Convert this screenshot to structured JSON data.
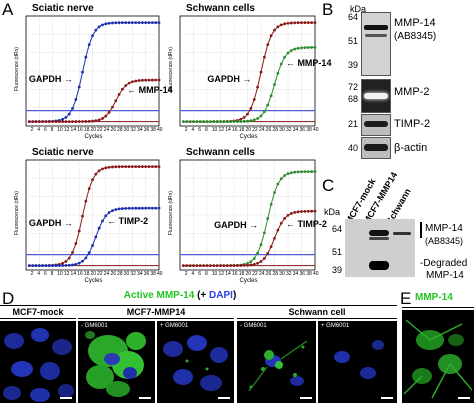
{
  "panels": {
    "a": "A",
    "b": "B",
    "c": "C",
    "d": "D",
    "e": "E"
  },
  "panel_a": {
    "axis_x_label": "Cycles",
    "axis_y_label": "Fluorescence (dRn)",
    "x_ticks": [
      "2",
      "4",
      "6",
      "8",
      "10",
      "12",
      "14",
      "16",
      "18",
      "20",
      "22",
      "24",
      "26",
      "28",
      "30",
      "32",
      "34",
      "36",
      "38",
      "40"
    ],
    "plots": [
      {
        "title": "Sciatic nerve",
        "arrow1": "GAPDH",
        "arrow2": "MMP-14"
      },
      {
        "title": "Schwann cells",
        "arrow1": "GAPDH",
        "arrow2": "MMP-14"
      },
      {
        "title": "Sciatic nerve",
        "arrow1": "GAPDH",
        "arrow2": "TIMP-2"
      },
      {
        "title": "Schwann cells",
        "arrow1": "GAPDH",
        "arrow2": "TIMP-2"
      }
    ]
  },
  "chart_data": [
    {
      "type": "line",
      "title": "Sciatic nerve",
      "xlabel": "Cycles",
      "ylabel": "Fluorescence (dRn)",
      "series": [
        {
          "name": "GAPDH",
          "ct": 17,
          "plateau": 1.0,
          "color": "#1b2fae"
        },
        {
          "name": "MMP-14",
          "ct": 27,
          "plateau": 0.42,
          "color": "#8b1a1a"
        }
      ]
    },
    {
      "type": "line",
      "title": "Schwann cells",
      "xlabel": "Cycles",
      "ylabel": "Fluorescence (dRn)",
      "series": [
        {
          "name": "GAPDH",
          "ct": 24,
          "plateau": 1.0,
          "color": "#8b1a1a"
        },
        {
          "name": "MMP-14",
          "ct": 28,
          "plateau": 0.75,
          "color": "#2e8b2e"
        }
      ]
    },
    {
      "type": "line",
      "title": "Sciatic nerve",
      "xlabel": "Cycles",
      "ylabel": "Fluorescence (dRn)",
      "series": [
        {
          "name": "GAPDH",
          "ct": 17,
          "plateau": 1.0,
          "color": "#8b1a1a"
        },
        {
          "name": "TIMP-2",
          "ct": 21,
          "plateau": 0.58,
          "color": "#1b2fae"
        }
      ]
    },
    {
      "type": "line",
      "title": "Schwann cells",
      "xlabel": "Cycles",
      "ylabel": "Fluorescence (dRn)",
      "series": [
        {
          "name": "GAPDH",
          "ct": 26,
          "plateau": 0.95,
          "color": "#2e8b2e"
        },
        {
          "name": "TIMP-2",
          "ct": 28,
          "plateau": 0.55,
          "color": "#8b1a1a"
        }
      ]
    }
  ],
  "panel_b": {
    "kda": "kDa",
    "blots": [
      {
        "label": "MMP-14",
        "sublabel": "(AB8345)",
        "mw": [
          "64",
          "51",
          "39"
        ]
      },
      {
        "label": "MMP-2",
        "sublabel": "",
        "mw": [
          "72",
          "68"
        ]
      },
      {
        "label": "TIMP-2",
        "sublabel": "",
        "mw": [
          "21"
        ]
      },
      {
        "label": "β-actin",
        "sublabel": "",
        "mw": [
          "40"
        ]
      }
    ]
  },
  "panel_c": {
    "kda": "kDa",
    "lanes": [
      "MCF7-mock",
      "MCF7-MMP14",
      "Schwann"
    ],
    "mw": [
      "64",
      "51",
      "39"
    ],
    "label_main": "MMP-14",
    "label_sub": "(AB8345)",
    "label_degraded": "-Degraded",
    "label_degraded2": "MMP-14"
  },
  "panel_d": {
    "title_green": "Active MMP-14",
    "title_mid": " (+ ",
    "title_blue": "DAPI",
    "title_end": ")",
    "groups": [
      "MCF7-mock",
      "MCF7-MMP14",
      "Schwann cell"
    ],
    "tags": [
      "",
      "- GM6001",
      "+ GM6001",
      "- GM6001",
      "+ GM6001"
    ]
  },
  "panel_e": {
    "title": "MMP-14"
  }
}
